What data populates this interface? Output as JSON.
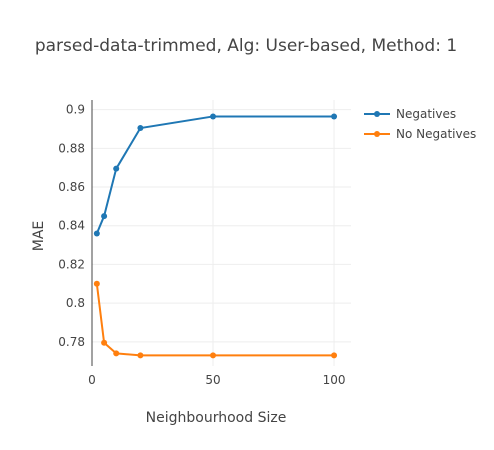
{
  "chart_data": {
    "type": "line",
    "title": "parsed-data-trimmed, Alg: User-based, Method: 1",
    "xlabel": "Neighbourhood Size",
    "ylabel": "MAE",
    "xlim": [
      0,
      107
    ],
    "ylim": [
      0.7675,
      0.905
    ],
    "x_ticks": [
      0,
      50,
      100
    ],
    "x_tick_labels": [
      "0",
      "50",
      "100"
    ],
    "y_ticks": [
      0.78,
      0.8,
      0.82,
      0.84,
      0.86,
      0.88,
      0.9
    ],
    "y_tick_labels": [
      "0.78",
      "0.8",
      "0.82",
      "0.84",
      "0.86",
      "0.88",
      "0.9"
    ],
    "grid": true,
    "legend_position": "top-right",
    "series": [
      {
        "name": "Negatives",
        "color": "#1f77b4",
        "x": [
          2,
          5,
          10,
          20,
          50,
          100
        ],
        "y": [
          0.836,
          0.845,
          0.8695,
          0.8905,
          0.8965,
          0.8965
        ]
      },
      {
        "name": "No Negatives",
        "color": "#ff7f0e",
        "x": [
          2,
          5,
          10,
          20,
          50,
          100
        ],
        "y": [
          0.81,
          0.7795,
          0.774,
          0.773,
          0.773,
          0.773
        ]
      }
    ]
  }
}
